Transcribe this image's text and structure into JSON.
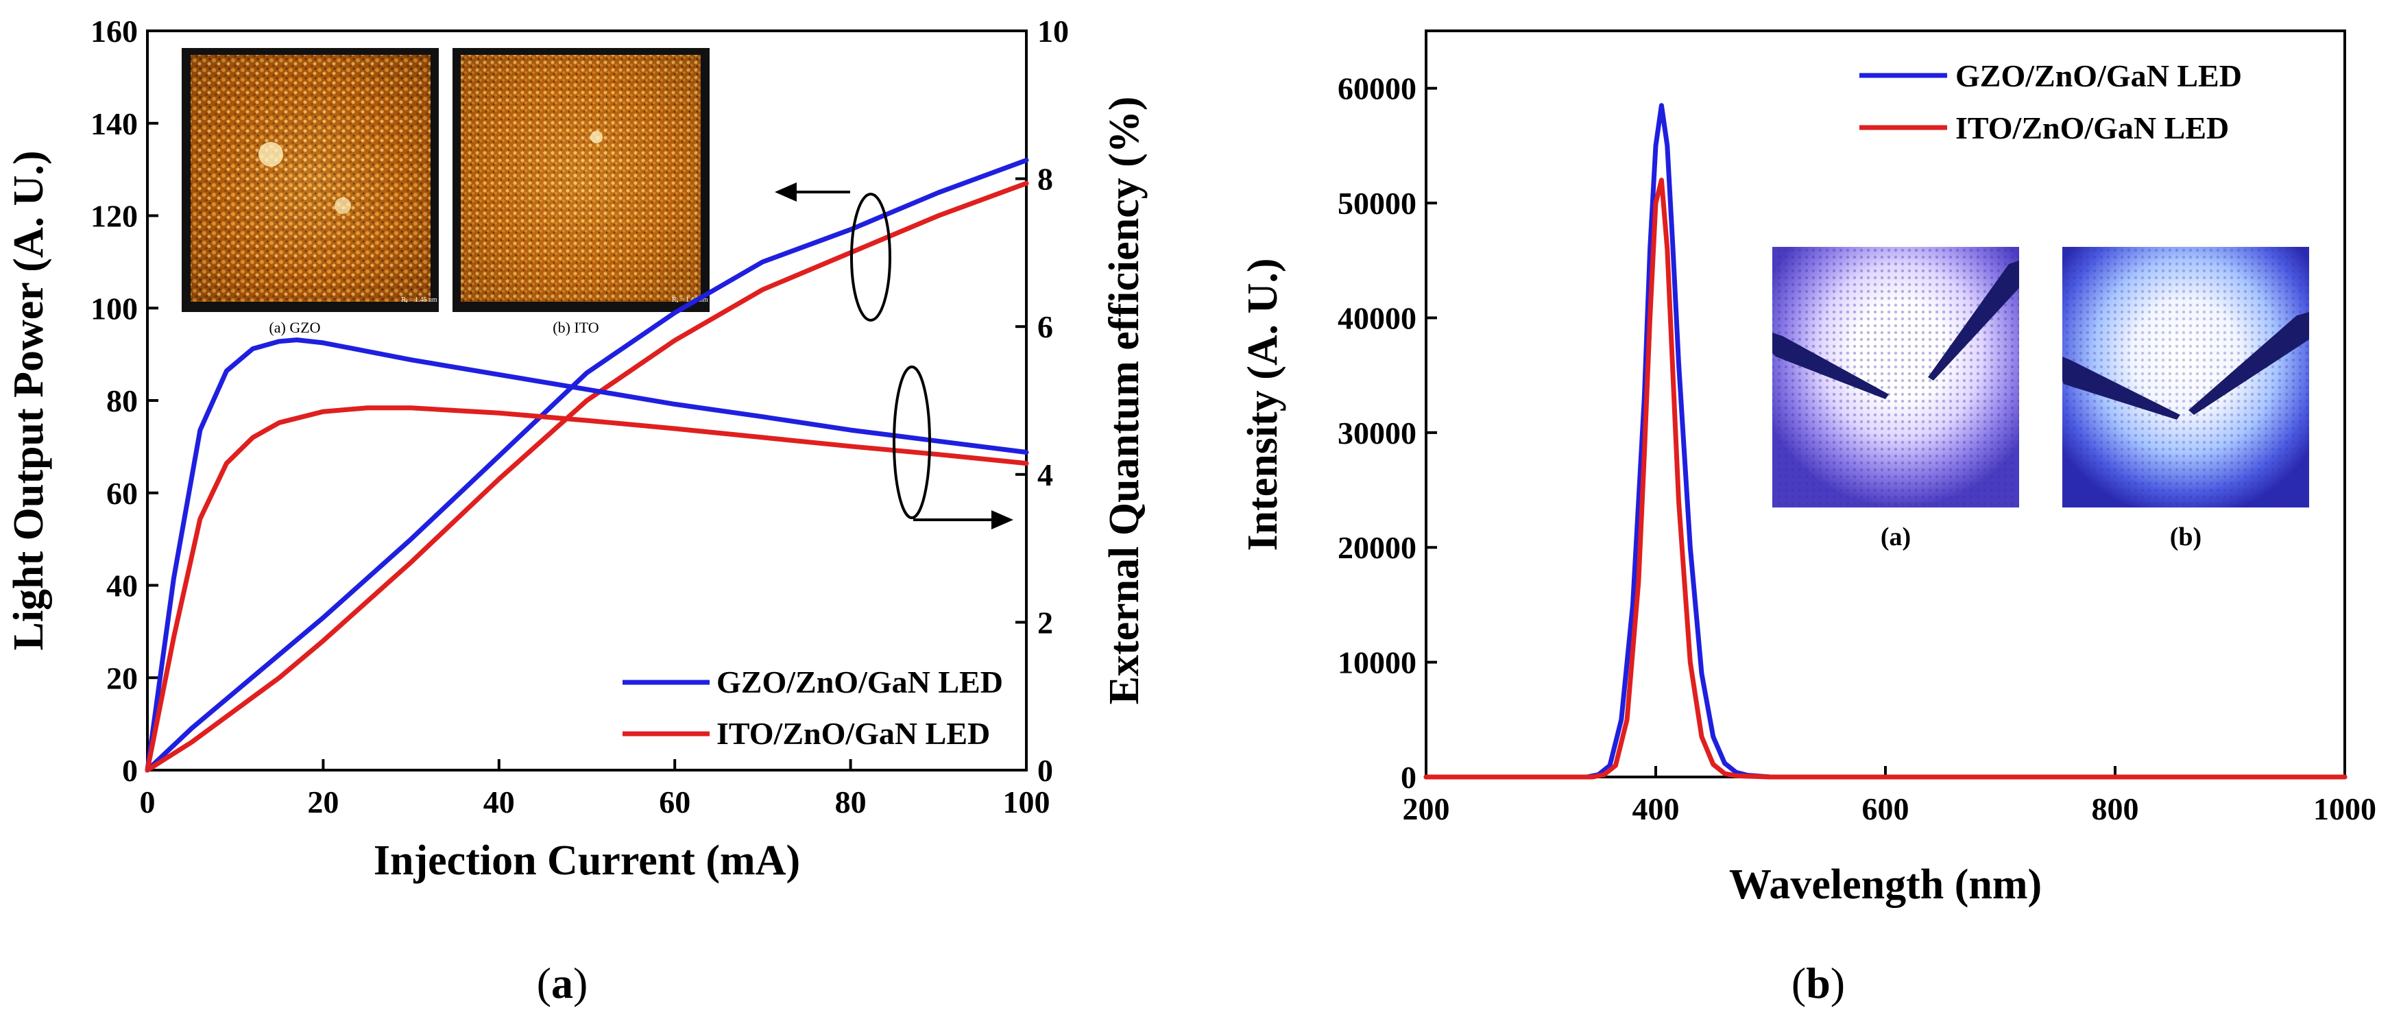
{
  "chart_data": [
    {
      "panel": "a",
      "type": "line",
      "title": "",
      "xlabel": "Injection Current (mA)",
      "ylabel": "Light Output Power (A. U.)",
      "y2label": "External Quantum efficiency (%)",
      "xlim": [
        0,
        100
      ],
      "ylim": [
        0,
        160
      ],
      "y2lim": [
        0,
        10
      ],
      "xticks": [
        0,
        20,
        40,
        60,
        80,
        100
      ],
      "yticks": [
        0,
        20,
        40,
        60,
        80,
        100,
        120,
        140,
        160
      ],
      "y2ticks": [
        0,
        2,
        4,
        6,
        8,
        10
      ],
      "legend": [
        "GZO/ZnO/GaN LED",
        "ITO/ZnO/GaN LED"
      ],
      "colors": {
        "GZO/ZnO/GaN LED": "#1f1fe0",
        "ITO/ZnO/GaN LED": "#e01f1f"
      },
      "series": [
        {
          "name": "GZO/ZnO/GaN LED",
          "quantity": "Light Output Power",
          "axis": "left",
          "x": [
            0,
            5,
            10,
            15,
            20,
            30,
            40,
            50,
            60,
            70,
            80,
            90,
            100
          ],
          "values": [
            0,
            9,
            17,
            25,
            33,
            50,
            68,
            86,
            99,
            110,
            117,
            125,
            132
          ]
        },
        {
          "name": "ITO/ZnO/GaN LED",
          "quantity": "Light Output Power",
          "axis": "left",
          "x": [
            0,
            5,
            10,
            15,
            20,
            30,
            40,
            50,
            60,
            70,
            80,
            90,
            100
          ],
          "values": [
            0,
            6,
            13,
            20,
            28,
            45,
            63,
            80,
            93,
            104,
            112,
            120,
            127
          ]
        },
        {
          "name": "GZO/ZnO/GaN LED",
          "quantity": "External Quantum efficiency",
          "axis": "right",
          "x": [
            0,
            3,
            6,
            9,
            12,
            15,
            17,
            20,
            30,
            40,
            50,
            60,
            70,
            80,
            90,
            100
          ],
          "values": [
            0,
            2.6,
            4.6,
            5.4,
            5.7,
            5.8,
            5.82,
            5.78,
            5.55,
            5.35,
            5.15,
            4.95,
            4.78,
            4.6,
            4.45,
            4.3
          ]
        },
        {
          "name": "ITO/ZnO/GaN LED",
          "quantity": "External Quantum efficiency",
          "axis": "right",
          "x": [
            0,
            3,
            6,
            9,
            12,
            15,
            20,
            25,
            30,
            40,
            50,
            60,
            70,
            80,
            90,
            100
          ],
          "values": [
            0,
            1.8,
            3.4,
            4.15,
            4.5,
            4.7,
            4.85,
            4.9,
            4.9,
            4.83,
            4.73,
            4.62,
            4.5,
            4.38,
            4.27,
            4.15
          ]
        }
      ],
      "insets": [
        {
          "caption": "(a) GZO",
          "scale": "Rₐ = 1.45 nm"
        },
        {
          "caption": "(b) ITO",
          "scale": "Rₐ = 1.44 nm"
        }
      ]
    },
    {
      "panel": "b",
      "type": "line",
      "title": "",
      "xlabel": "Wavelength (nm)",
      "ylabel": "Intensity (A. U.)",
      "xlim": [
        200,
        1000
      ],
      "ylim": [
        0,
        65000
      ],
      "xticks": [
        200,
        400,
        600,
        800,
        1000
      ],
      "yticks": [
        0,
        10000,
        20000,
        30000,
        40000,
        50000,
        60000
      ],
      "legend": [
        "GZO/ZnO/GaN LED",
        "ITO/ZnO/GaN LED"
      ],
      "colors": {
        "GZO/ZnO/GaN LED": "#1f1fe0",
        "ITO/ZnO/GaN LED": "#e01f1f"
      },
      "series": [
        {
          "name": "GZO/ZnO/GaN LED",
          "x": [
            200,
            340,
            350,
            360,
            370,
            380,
            390,
            395,
            400,
            405,
            410,
            415,
            420,
            430,
            440,
            450,
            460,
            470,
            480,
            500,
            600,
            800,
            1000
          ],
          "values": [
            0,
            0,
            200,
            1000,
            5000,
            15000,
            33000,
            46000,
            55000,
            58500,
            55000,
            46000,
            36000,
            20000,
            9000,
            3500,
            1200,
            400,
            150,
            0,
            0,
            0,
            0
          ]
        },
        {
          "name": "ITO/ZnO/GaN LED",
          "x": [
            200,
            345,
            355,
            365,
            375,
            385,
            390,
            395,
            400,
            405,
            410,
            415,
            420,
            430,
            440,
            450,
            460,
            470,
            500,
            600,
            800,
            1000
          ],
          "values": [
            0,
            0,
            200,
            1000,
            5000,
            17000,
            28000,
            40000,
            50000,
            52000,
            46000,
            35000,
            24000,
            10000,
            3500,
            1100,
            300,
            100,
            0,
            0,
            0,
            0
          ]
        }
      ],
      "insets": [
        {
          "caption": "(a)"
        },
        {
          "caption": "(b)"
        }
      ]
    }
  ],
  "panel_labels": {
    "a_open": "(",
    "a": "a",
    "a_close": ")",
    "b_open": "(",
    "b": "b",
    "b_close": ")"
  }
}
